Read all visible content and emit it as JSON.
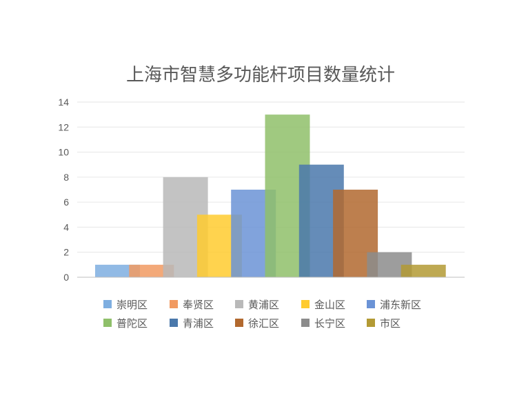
{
  "chart_data": {
    "type": "bar",
    "title": "上海市智慧多功能杆项目数量统计",
    "xlabel": "",
    "ylabel": "",
    "ylim": [
      0,
      14
    ],
    "yticks": [
      0,
      2,
      4,
      6,
      8,
      10,
      12,
      14
    ],
    "grid": true,
    "legend_position": "bottom",
    "series": [
      {
        "name": "崇明区",
        "value": 1,
        "color": "#7eaee0"
      },
      {
        "name": "奉贤区",
        "value": 1,
        "color": "#f19a61"
      },
      {
        "name": "黄浦区",
        "value": 8,
        "color": "#b9b9b9"
      },
      {
        "name": "金山区",
        "value": 5,
        "color": "#ffcb2f"
      },
      {
        "name": "浦东新区",
        "value": 7,
        "color": "#6b93d6"
      },
      {
        "name": "普陀区",
        "value": 13,
        "color": "#8fc06a"
      },
      {
        "name": "青浦区",
        "value": 9,
        "color": "#4a78ab"
      },
      {
        "name": "徐汇区",
        "value": 7,
        "color": "#b2692f"
      },
      {
        "name": "长宁区",
        "value": 2,
        "color": "#8c8c8c"
      },
      {
        "name": "市区",
        "value": 1,
        "color": "#b39a34"
      }
    ]
  }
}
